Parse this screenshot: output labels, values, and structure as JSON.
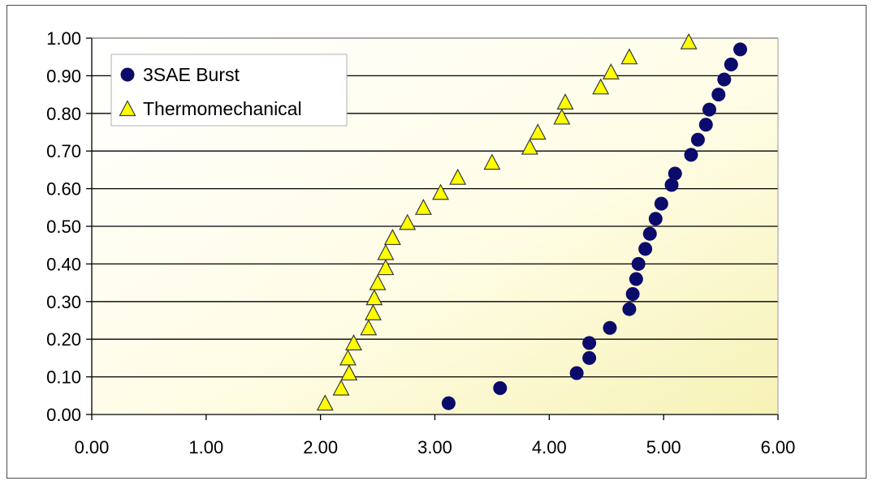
{
  "chart_data": {
    "type": "scatter",
    "title": "",
    "xlabel": "",
    "ylabel": "",
    "xlim": [
      0,
      6
    ],
    "ylim": [
      0,
      1
    ],
    "x_ticks": [
      "0.00",
      "1.00",
      "2.00",
      "3.00",
      "4.00",
      "5.00",
      "6.00"
    ],
    "y_ticks": [
      "0.00",
      "0.10",
      "0.20",
      "0.30",
      "0.40",
      "0.50",
      "0.60",
      "0.70",
      "0.80",
      "0.90",
      "1.00"
    ],
    "grid": "horizontal",
    "legend_position": "top-left",
    "background": "yellow-gradient",
    "series": [
      {
        "name": "3SAE Burst",
        "marker": "circle",
        "color": "#0b0b6b",
        "points": [
          [
            3.12,
            0.03
          ],
          [
            3.57,
            0.07
          ],
          [
            4.24,
            0.11
          ],
          [
            4.35,
            0.15
          ],
          [
            4.35,
            0.19
          ],
          [
            4.53,
            0.23
          ],
          [
            4.7,
            0.28
          ],
          [
            4.73,
            0.32
          ],
          [
            4.76,
            0.36
          ],
          [
            4.78,
            0.4
          ],
          [
            4.84,
            0.44
          ],
          [
            4.88,
            0.48
          ],
          [
            4.93,
            0.52
          ],
          [
            4.98,
            0.56
          ],
          [
            5.07,
            0.61
          ],
          [
            5.1,
            0.64
          ],
          [
            5.24,
            0.69
          ],
          [
            5.3,
            0.73
          ],
          [
            5.37,
            0.77
          ],
          [
            5.4,
            0.81
          ],
          [
            5.48,
            0.85
          ],
          [
            5.53,
            0.89
          ],
          [
            5.59,
            0.93
          ],
          [
            5.67,
            0.97
          ]
        ]
      },
      {
        "name": "Thermomechanical",
        "marker": "triangle",
        "color": "#ffff00",
        "points": [
          [
            2.04,
            0.03
          ],
          [
            2.18,
            0.07
          ],
          [
            2.25,
            0.11
          ],
          [
            2.24,
            0.15
          ],
          [
            2.29,
            0.19
          ],
          [
            2.42,
            0.23
          ],
          [
            2.46,
            0.27
          ],
          [
            2.47,
            0.31
          ],
          [
            2.5,
            0.35
          ],
          [
            2.57,
            0.39
          ],
          [
            2.57,
            0.43
          ],
          [
            2.63,
            0.47
          ],
          [
            2.76,
            0.51
          ],
          [
            2.9,
            0.55
          ],
          [
            3.05,
            0.59
          ],
          [
            3.2,
            0.63
          ],
          [
            3.5,
            0.67
          ],
          [
            3.83,
            0.71
          ],
          [
            3.9,
            0.75
          ],
          [
            4.11,
            0.79
          ],
          [
            4.14,
            0.83
          ],
          [
            4.45,
            0.87
          ],
          [
            4.54,
            0.91
          ],
          [
            4.7,
            0.95
          ],
          [
            5.22,
            0.99
          ]
        ]
      }
    ]
  }
}
